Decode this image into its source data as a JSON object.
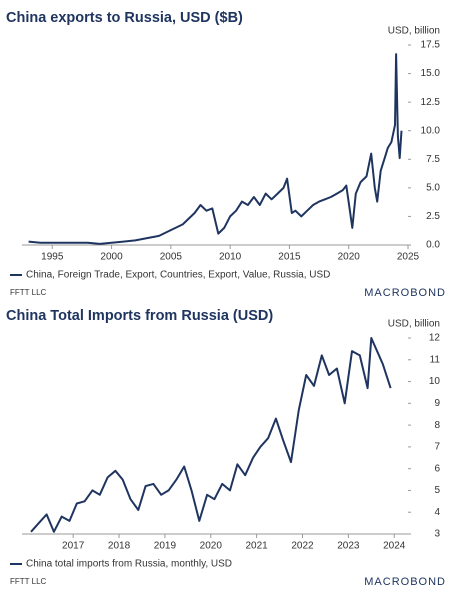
{
  "chart_data": [
    {
      "type": "line",
      "title": "China exports to Russia, USD ($B)",
      "y_label": "USD, billion",
      "x": [
        1993,
        1994,
        1995,
        1996,
        1997,
        1998,
        1999,
        2000,
        2001,
        2002,
        2003,
        2004,
        2005,
        2006,
        2007,
        2007.5,
        2008,
        2008.5,
        2009,
        2009.5,
        2010,
        2010.5,
        2011,
        2011.5,
        2012,
        2012.5,
        2013,
        2013.5,
        2014,
        2014.5,
        2014.8,
        2015.2,
        2015.5,
        2016,
        2016.5,
        2017,
        2017.5,
        2018,
        2018.5,
        2019,
        2019.5,
        2019.8,
        2020.1,
        2020.3,
        2020.6,
        2021,
        2021.5,
        2021.9,
        2022.2,
        2022.4,
        2022.7,
        2023,
        2023.3,
        2023.6,
        2023.9,
        2024,
        2024.15,
        2024.3,
        2024.45
      ],
      "series": [
        {
          "name": "China, Foreign Trade, Export, Countries, Export, Value, Russia, USD",
          "color": "#1f3560",
          "values": [
            0.3,
            0.2,
            0.2,
            0.2,
            0.2,
            0.2,
            0.1,
            0.2,
            0.3,
            0.4,
            0.6,
            0.8,
            1.3,
            1.8,
            2.8,
            3.5,
            3.0,
            3.2,
            1.0,
            1.5,
            2.5,
            3.0,
            3.8,
            3.5,
            4.2,
            3.5,
            4.5,
            4.0,
            4.5,
            5.0,
            5.8,
            2.8,
            3.0,
            2.5,
            3.0,
            3.5,
            3.8,
            4.0,
            4.2,
            4.5,
            4.8,
            5.2,
            3.0,
            1.5,
            4.5,
            5.5,
            6.0,
            8.0,
            5.0,
            3.8,
            6.5,
            7.5,
            8.5,
            9.0,
            10.5,
            16.7,
            9.5,
            7.6,
            10.0
          ]
        }
      ],
      "xlim": [
        1992.7,
        2025
      ],
      "xticks": [
        1995,
        2000,
        2005,
        2010,
        2015,
        2020,
        2025
      ],
      "ylim": [
        0,
        17.5
      ],
      "yticks": [
        {
          "value": 0,
          "label": "0.0"
        },
        2.5,
        {
          "value": 5,
          "label": "5.0"
        },
        7.5,
        {
          "value": 10,
          "label": "10.0"
        },
        12.5,
        {
          "value": 15,
          "label": "15.0"
        },
        17.5
      ],
      "source": "FFTT LLC",
      "brand": "MACROBOND"
    },
    {
      "type": "line",
      "title": "China Total Imports from Russia (USD)",
      "y_label": "USD, billion",
      "x": [
        2016.58,
        2016.75,
        2016.92,
        2017.08,
        2017.25,
        2017.42,
        2017.58,
        2017.75,
        2017.92,
        2018.08,
        2018.25,
        2018.42,
        2018.58,
        2018.75,
        2018.92,
        2019.08,
        2019.25,
        2019.42,
        2019.58,
        2019.75,
        2019.92,
        2020.08,
        2020.25,
        2020.42,
        2020.58,
        2020.75,
        2020.92,
        2021.08,
        2021.25,
        2021.42,
        2021.58,
        2021.75,
        2021.92,
        2022.08,
        2022.25,
        2022.42,
        2022.58,
        2022.75,
        2022.92,
        2023.08,
        2023.25,
        2023.42,
        2023.58,
        2023.75,
        2023.92,
        2024,
        2024.25,
        2024.42
      ],
      "series": [
        {
          "name": "China total imports from Russia, monthly, USD",
          "color": "#1f3560",
          "values": [
            3.1,
            3.5,
            3.9,
            3.1,
            3.8,
            3.6,
            4.4,
            4.5,
            5.0,
            4.8,
            5.6,
            5.9,
            5.5,
            4.6,
            4.1,
            5.2,
            5.3,
            4.8,
            5.0,
            5.5,
            6.1,
            5.0,
            3.6,
            4.8,
            4.6,
            5.3,
            5.0,
            6.2,
            5.7,
            6.5,
            7.0,
            7.4,
            8.3,
            7.3,
            6.3,
            8.7,
            10.3,
            9.8,
            11.2,
            10.3,
            10.6,
            9.0,
            11.4,
            11.2,
            9.7,
            12.0,
            10.8,
            9.7
          ]
        }
      ],
      "xlim": [
        2016.45,
        2024.8
      ],
      "xticks": [
        {
          "value": 2017.5,
          "label": "2017"
        },
        {
          "value": 2018.5,
          "label": "2018"
        },
        {
          "value": 2019.5,
          "label": "2019"
        },
        {
          "value": 2020.5,
          "label": "2020"
        },
        {
          "value": 2021.5,
          "label": "2021"
        },
        {
          "value": 2022.5,
          "label": "2022"
        },
        {
          "value": 2023.5,
          "label": "2023"
        },
        {
          "value": 2024.5,
          "label": "2024"
        }
      ],
      "ylim": [
        3,
        12
      ],
      "yticks": [
        3,
        4,
        5,
        6,
        7,
        8,
        9,
        10,
        11,
        12
      ],
      "source": "FFTT LLC",
      "brand": "MACROBOND"
    }
  ]
}
